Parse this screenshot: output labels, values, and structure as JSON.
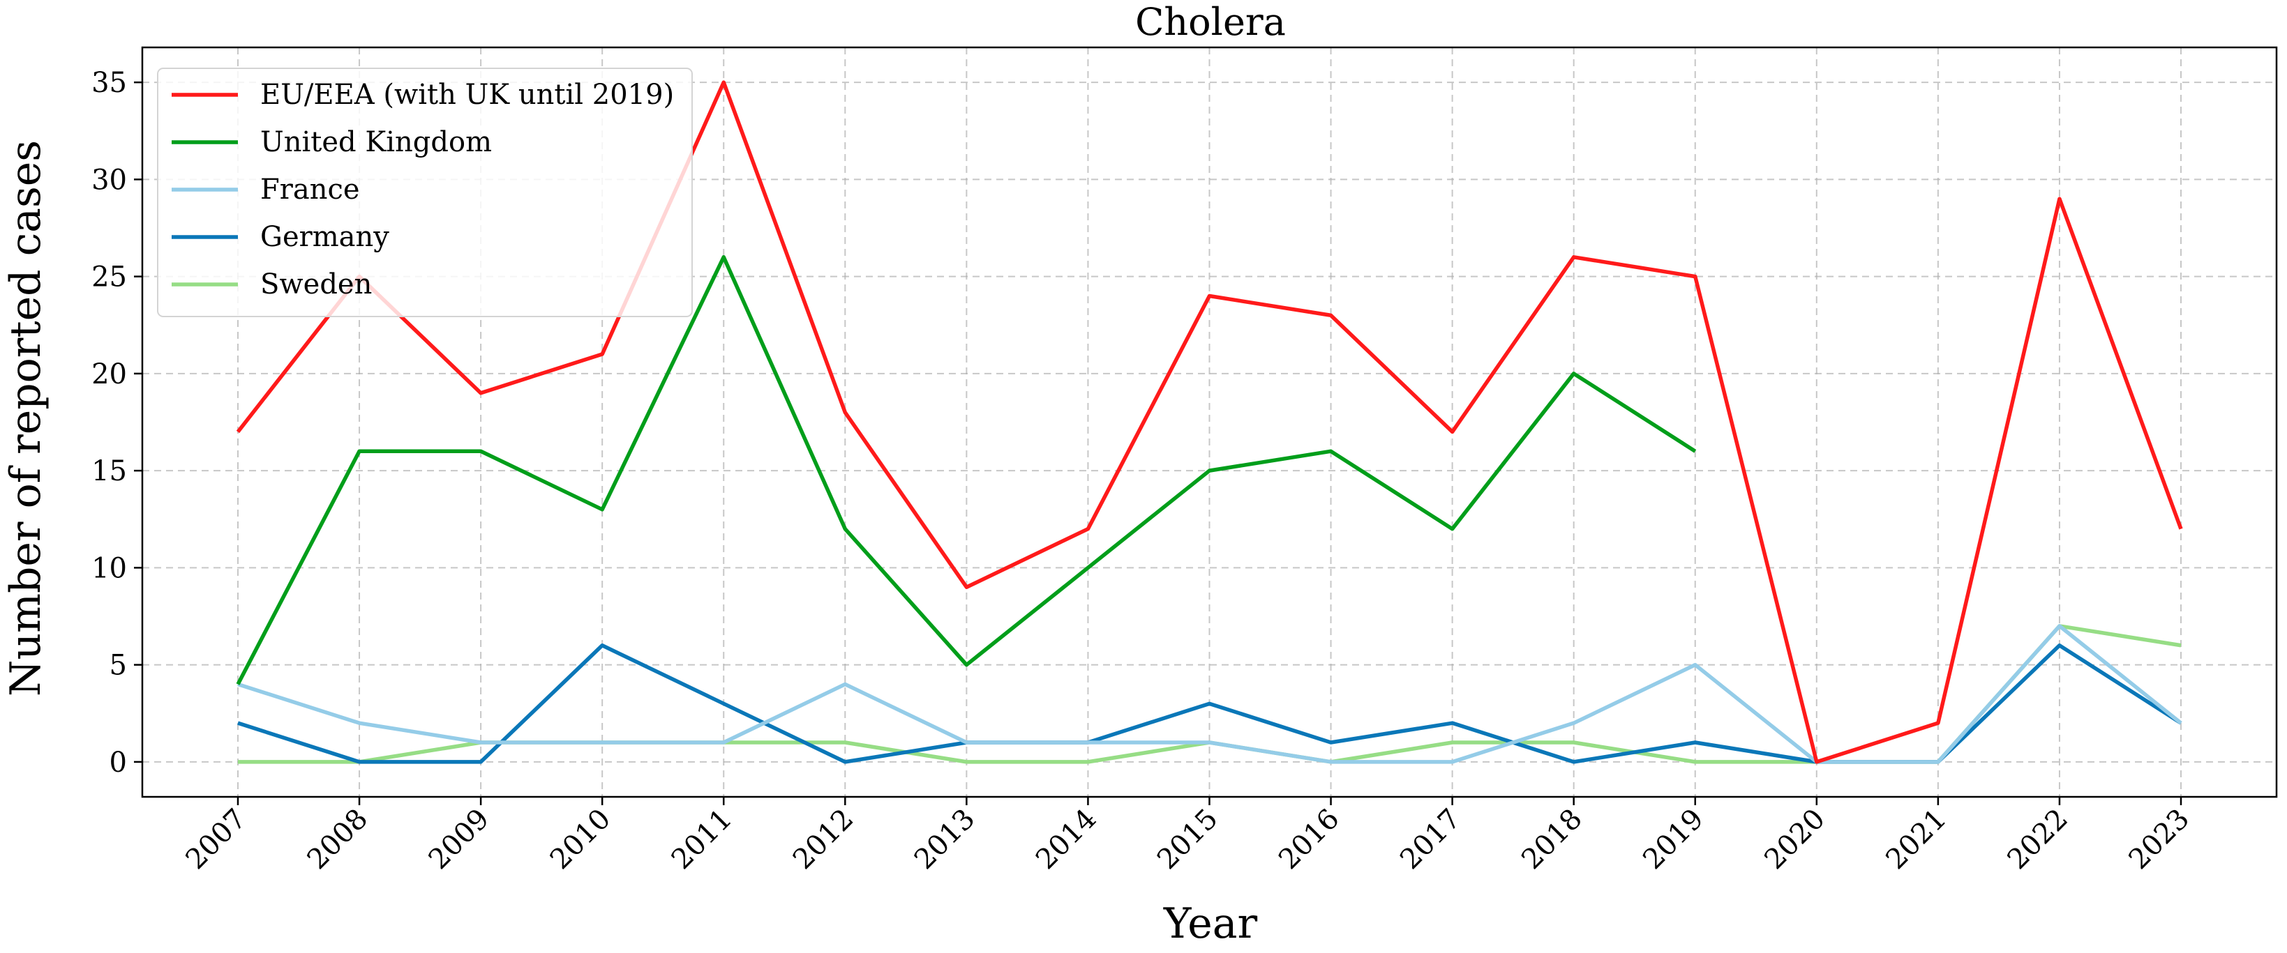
{
  "chart_data": {
    "type": "line",
    "title": "Cholera",
    "xlabel": "Year",
    "ylabel": "Number of reported cases",
    "x": [
      "2007",
      "2008",
      "2009",
      "2010",
      "2011",
      "2012",
      "2013",
      "2014",
      "2015",
      "2016",
      "2017",
      "2018",
      "2019",
      "2020",
      "2021",
      "2022",
      "2023"
    ],
    "ylim": [
      -1.8,
      36.8
    ],
    "yticks": [
      0,
      5,
      10,
      15,
      20,
      25,
      30,
      35
    ],
    "ytick_labels": [
      "0",
      "5",
      "10",
      "15",
      "20",
      "25",
      "30",
      "35"
    ],
    "grid": true,
    "legend_position": "top-left",
    "series": [
      {
        "name": "EU/EEA (with UK until 2019)",
        "color": "#ff1a1a",
        "values": [
          17,
          25,
          19,
          21,
          35,
          18,
          9,
          12,
          24,
          23,
          17,
          26,
          25,
          0,
          2,
          29,
          12
        ]
      },
      {
        "name": "United Kingdom",
        "color": "#009e1a",
        "values": [
          4,
          16,
          16,
          13,
          26,
          12,
          5,
          10,
          15,
          16,
          12,
          20,
          16,
          null,
          null,
          null,
          null
        ]
      },
      {
        "name": "France",
        "color": "#94cce8",
        "values": [
          4,
          2,
          1,
          1,
          1,
          4,
          1,
          1,
          1,
          0,
          0,
          2,
          5,
          0,
          0,
          7,
          2
        ]
      },
      {
        "name": "Germany",
        "color": "#0a77b8",
        "values": [
          2,
          0,
          0,
          6,
          3,
          0,
          1,
          1,
          3,
          1,
          2,
          0,
          1,
          0,
          0,
          6,
          2
        ]
      },
      {
        "name": "Sweden",
        "color": "#96dd85",
        "values": [
          0,
          0,
          1,
          1,
          1,
          1,
          0,
          0,
          1,
          0,
          1,
          1,
          0,
          0,
          0,
          7,
          6
        ]
      }
    ]
  }
}
